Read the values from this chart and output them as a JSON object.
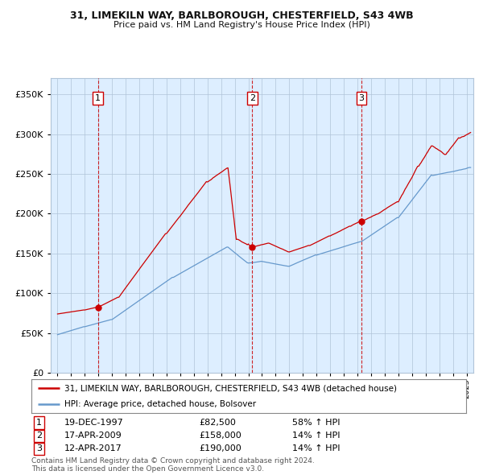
{
  "title1": "31, LIMEKILN WAY, BARLBOROUGH, CHESTERFIELD, S43 4WB",
  "title2": "Price paid vs. HM Land Registry's House Price Index (HPI)",
  "legend_line1": "31, LIMEKILN WAY, BARLBOROUGH, CHESTERFIELD, S43 4WB (detached house)",
  "legend_line2": "HPI: Average price, detached house, Bolsover",
  "transactions": [
    {
      "num": 1,
      "date": "19-DEC-1997",
      "price": 82500,
      "pct": "58%",
      "dir": "↑"
    },
    {
      "num": 2,
      "date": "17-APR-2009",
      "price": 158000,
      "pct": "14%",
      "dir": "↑"
    },
    {
      "num": 3,
      "date": "12-APR-2017",
      "price": 190000,
      "pct": "14%",
      "dir": "↑"
    }
  ],
  "transaction_years": [
    1997.97,
    2009.29,
    2017.28
  ],
  "transaction_prices": [
    82500,
    158000,
    190000
  ],
  "red_color": "#cc0000",
  "blue_color": "#6699cc",
  "bg_color": "#ddeeff",
  "grid_color": "#b0c4d8",
  "yticks": [
    0,
    50000,
    100000,
    150000,
    200000,
    250000,
    300000,
    350000
  ],
  "ylim": [
    0,
    370000
  ],
  "xlim_start": 1994.5,
  "xlim_end": 2025.5,
  "footer": "Contains HM Land Registry data © Crown copyright and database right 2024.\nThis data is licensed under the Open Government Licence v3.0."
}
